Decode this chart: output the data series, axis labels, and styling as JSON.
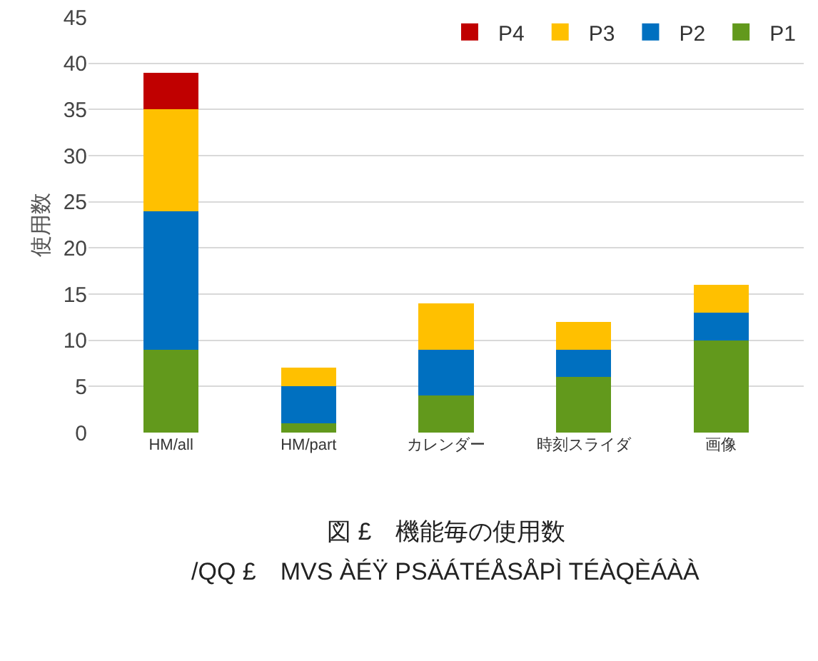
{
  "chart_data": {
    "type": "bar",
    "stacked": true,
    "ylabel": "使用数",
    "categories": [
      "HM/all",
      "HM/part",
      "カレンダー",
      "時刻スライダ",
      "画像"
    ],
    "series": [
      {
        "name": "P1",
        "color": "#62991c",
        "values": [
          9,
          1,
          4,
          6,
          10
        ]
      },
      {
        "name": "P2",
        "color": "#0070c0",
        "values": [
          15,
          4,
          5,
          3,
          3
        ]
      },
      {
        "name": "P3",
        "color": "#ffc000",
        "values": [
          11,
          2,
          5,
          3,
          3
        ]
      },
      {
        "name": "P4",
        "color": "#c00000",
        "values": [
          4,
          0,
          0,
          0,
          0
        ]
      }
    ],
    "ylim": [
      0,
      45
    ],
    "yticks": [
      0,
      5,
      10,
      15,
      20,
      25,
      30,
      35,
      40,
      45
    ],
    "grid": "y",
    "legend": "top right",
    "annotations": [
      "図 £　機能毎の使用数",
      "/QQ £　MVS ÀÉŸ PSÄÁTÉÅSÅPÌ TÉÀQÈÁÀÀ"
    ]
  }
}
